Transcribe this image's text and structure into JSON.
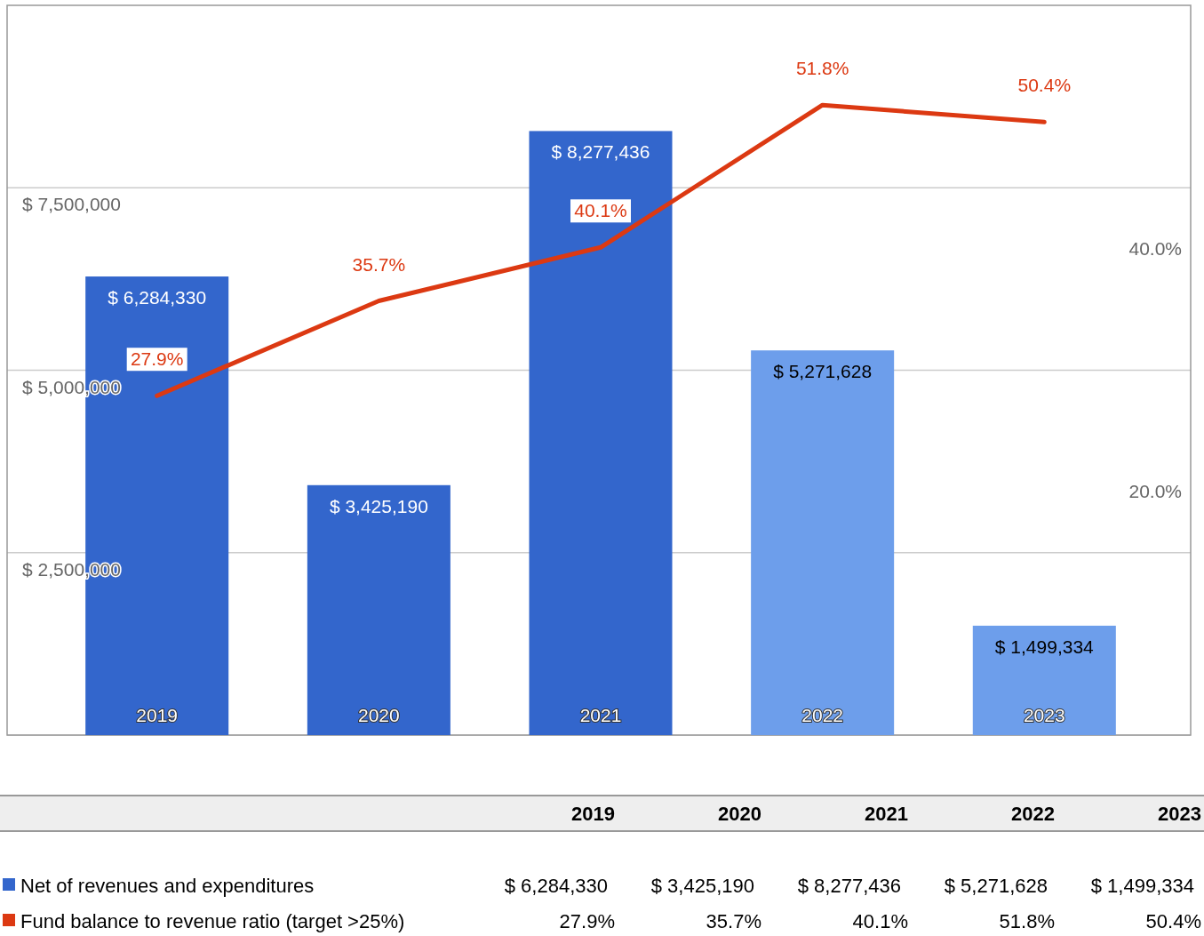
{
  "chart_data": {
    "type": "bar",
    "categories": [
      "2019",
      "2020",
      "2021",
      "2022",
      "2023"
    ],
    "ylim": [
      0,
      10000000
    ],
    "yticks": [
      {
        "value": 0,
        "label": null
      },
      {
        "value": 2500000,
        "label": "$ 2,500,000"
      },
      {
        "value": 5000000,
        "label": "$ 5,000,000"
      },
      {
        "value": 7500000,
        "label": "$ 7,500,000"
      }
    ],
    "y2lim": [
      0,
      60
    ],
    "y2ticks": [
      {
        "value": 20,
        "label": "20.0%"
      },
      {
        "value": 40,
        "label": "40.0%"
      }
    ],
    "grid": "y",
    "legend": "bottom left",
    "data_labels": false,
    "series": [
      {
        "name": "Net of revenues and expenditures",
        "colors": [
          "#3366cc",
          "#3366cc",
          "#3366cc",
          "#6d9eeb",
          "#6d9eeb"
        ],
        "values": [
          6284330,
          3425190,
          8277436,
          5271628,
          1499334
        ],
        "value_labels": [
          "$ 6,284,330",
          "$ 3,425,190",
          "$ 8,277,436",
          "$ 5,271,628",
          "$ 1,499,334"
        ]
      },
      {
        "name": "Fund balance to revenue ratio (target >25%)",
        "type": "line",
        "axis": "y2",
        "color": "#dc3912",
        "values": [
          27.9,
          35.7,
          40.1,
          51.8,
          50.4
        ],
        "value_labels": [
          "27.9%",
          "35.7%",
          "40.1%",
          "51.8%",
          "50.4%"
        ]
      }
    ]
  }
}
